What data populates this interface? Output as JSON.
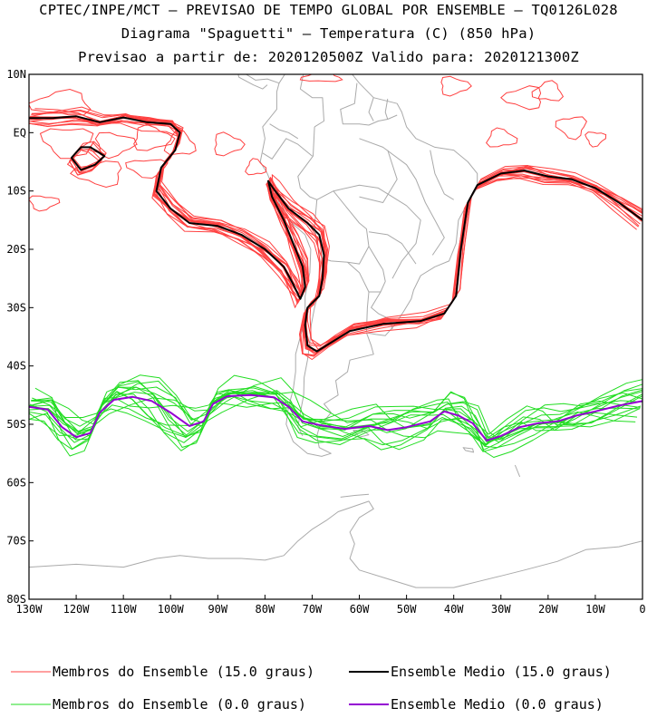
{
  "chart_data": {
    "type": "line",
    "title_lines": [
      "CPTEC/INPE/MCT – PREVISAO DE TEMPO GLOBAL POR ENSEMBLE – TQ0126L028",
      "Diagrama \"Spaguetti\" – Temperatura (C) (850 hPa)",
      "Previsao a partir de: 2020120500Z  Valido para: 2020121300Z"
    ],
    "x_range": [
      -130,
      0
    ],
    "y_range": [
      -80,
      10
    ],
    "x_ticks": [
      {
        "value": -130,
        "label": "130W"
      },
      {
        "value": -120,
        "label": "120W"
      },
      {
        "value": -110,
        "label": "110W"
      },
      {
        "value": -100,
        "label": "100W"
      },
      {
        "value": -90,
        "label": "90W"
      },
      {
        "value": -80,
        "label": "80W"
      },
      {
        "value": -70,
        "label": "70W"
      },
      {
        "value": -60,
        "label": "60W"
      },
      {
        "value": -50,
        "label": "50W"
      },
      {
        "value": -40,
        "label": "40W"
      },
      {
        "value": -30,
        "label": "30W"
      },
      {
        "value": -20,
        "label": "20W"
      },
      {
        "value": -10,
        "label": "10W"
      },
      {
        "value": 0,
        "label": "0"
      }
    ],
    "y_ticks": [
      {
        "value": 10,
        "label": "10N"
      },
      {
        "value": 0,
        "label": "EQ"
      },
      {
        "value": -10,
        "label": "10S"
      },
      {
        "value": -20,
        "label": "20S"
      },
      {
        "value": -30,
        "label": "30S"
      },
      {
        "value": -40,
        "label": "40S"
      },
      {
        "value": -50,
        "label": "50S"
      },
      {
        "value": -60,
        "label": "60S"
      },
      {
        "value": -70,
        "label": "70S"
      },
      {
        "value": -80,
        "label": "80S"
      }
    ],
    "legend": [
      {
        "label": "Membros do Ensemble (15.0 graus)",
        "color": "#ff4040"
      },
      {
        "label": "Ensemble Medio (15.0 graus)",
        "color": "#000000"
      },
      {
        "label": "Membros do Ensemble (0.0 graus)",
        "color": "#22dd22"
      },
      {
        "label": "Ensemble Medio (0.0 graus)",
        "color": "#9400d3"
      }
    ],
    "colors": {
      "coast": "#aaaaaa",
      "members_15": "#ff4040",
      "mean_15": "#000000",
      "members_0": "#22dd22",
      "mean_0": "#9400d3"
    },
    "series": [
      {
        "name": "Ensemble Medio (15.0 graus)",
        "color": "#000000",
        "segments": [
          [
            [
              -130,
              2.5
            ],
            [
              -125,
              2.5
            ],
            [
              -120,
              2.8
            ],
            [
              -115,
              1.8
            ],
            [
              -110,
              2.6
            ],
            [
              -105,
              1.8
            ],
            [
              -100,
              1.5
            ],
            [
              -98,
              0
            ],
            [
              -99,
              -3
            ],
            [
              -102,
              -6
            ],
            [
              -103,
              -10
            ],
            [
              -100,
              -13
            ],
            [
              -96,
              -15.5
            ],
            [
              -90,
              -16
            ],
            [
              -85,
              -17.5
            ],
            [
              -80,
              -20
            ],
            [
              -76,
              -23
            ],
            [
              -74,
              -26
            ],
            [
              -72.5,
              -28.5
            ],
            [
              -71.5,
              -26.5
            ],
            [
              -72,
              -23
            ],
            [
              -74,
              -19
            ],
            [
              -76,
              -15
            ],
            [
              -78.5,
              -11
            ],
            [
              -79.3,
              -8.3
            ],
            [
              -78,
              -9.8
            ],
            [
              -75,
              -13
            ],
            [
              -71,
              -15.5
            ],
            [
              -68.5,
              -17.5
            ],
            [
              -67.5,
              -21
            ],
            [
              -67.8,
              -25
            ],
            [
              -68.5,
              -28
            ],
            [
              -71,
              -30
            ],
            [
              -71.5,
              -33
            ],
            [
              -71,
              -36.5
            ],
            [
              -69,
              -37.5
            ],
            [
              -66,
              -36
            ],
            [
              -62,
              -34
            ],
            [
              -55,
              -32.8
            ],
            [
              -47,
              -32.3
            ],
            [
              -42,
              -31
            ],
            [
              -39.5,
              -28
            ],
            [
              -38.5,
              -20
            ],
            [
              -37,
              -12
            ],
            [
              -35,
              -9
            ],
            [
              -30,
              -7
            ],
            [
              -25,
              -6.5
            ],
            [
              -20,
              -7.5
            ],
            [
              -15,
              -8
            ],
            [
              -10,
              -9.5
            ],
            [
              -5,
              -12
            ],
            [
              0,
              -15
            ]
          ],
          [
            [
              -117,
              -2.5
            ],
            [
              -114,
              -4
            ],
            [
              -116,
              -5.5
            ],
            [
              -119,
              -6.4
            ],
            [
              -121,
              -4.3
            ],
            [
              -119,
              -2.5
            ],
            [
              -117,
              -2.5
            ]
          ]
        ]
      },
      {
        "name": "Ensemble Medio (0.0 graus)",
        "color": "#9400d3",
        "segments": [
          [
            [
              -130,
              -47
            ],
            [
              -126,
              -47.5
            ],
            [
              -123,
              -50.5
            ],
            [
              -120,
              -52.2
            ],
            [
              -117,
              -51.5
            ],
            [
              -115,
              -48
            ],
            [
              -112,
              -45.8
            ],
            [
              -108,
              -45.3
            ],
            [
              -104,
              -46
            ],
            [
              -100,
              -48
            ],
            [
              -96,
              -50.3
            ],
            [
              -93,
              -49.5
            ],
            [
              -91,
              -46.5
            ],
            [
              -88,
              -45.2
            ],
            [
              -83,
              -45
            ],
            [
              -78,
              -45.4
            ],
            [
              -75,
              -47
            ],
            [
              -72,
              -49.5
            ],
            [
              -68,
              -50.2
            ],
            [
              -63,
              -50.8
            ],
            [
              -58,
              -50.3
            ],
            [
              -54,
              -51
            ],
            [
              -50,
              -50.5
            ],
            [
              -45,
              -49.5
            ],
            [
              -42,
              -47.8
            ],
            [
              -39,
              -48.5
            ],
            [
              -36,
              -49.8
            ],
            [
              -33,
              -52.8
            ],
            [
              -30,
              -52
            ],
            [
              -26,
              -50.5
            ],
            [
              -22,
              -49.8
            ],
            [
              -18,
              -49.5
            ],
            [
              -14,
              -48.5
            ],
            [
              -10,
              -47.8
            ],
            [
              -5,
              -46.8
            ],
            [
              0,
              -46
            ]
          ]
        ]
      }
    ]
  }
}
